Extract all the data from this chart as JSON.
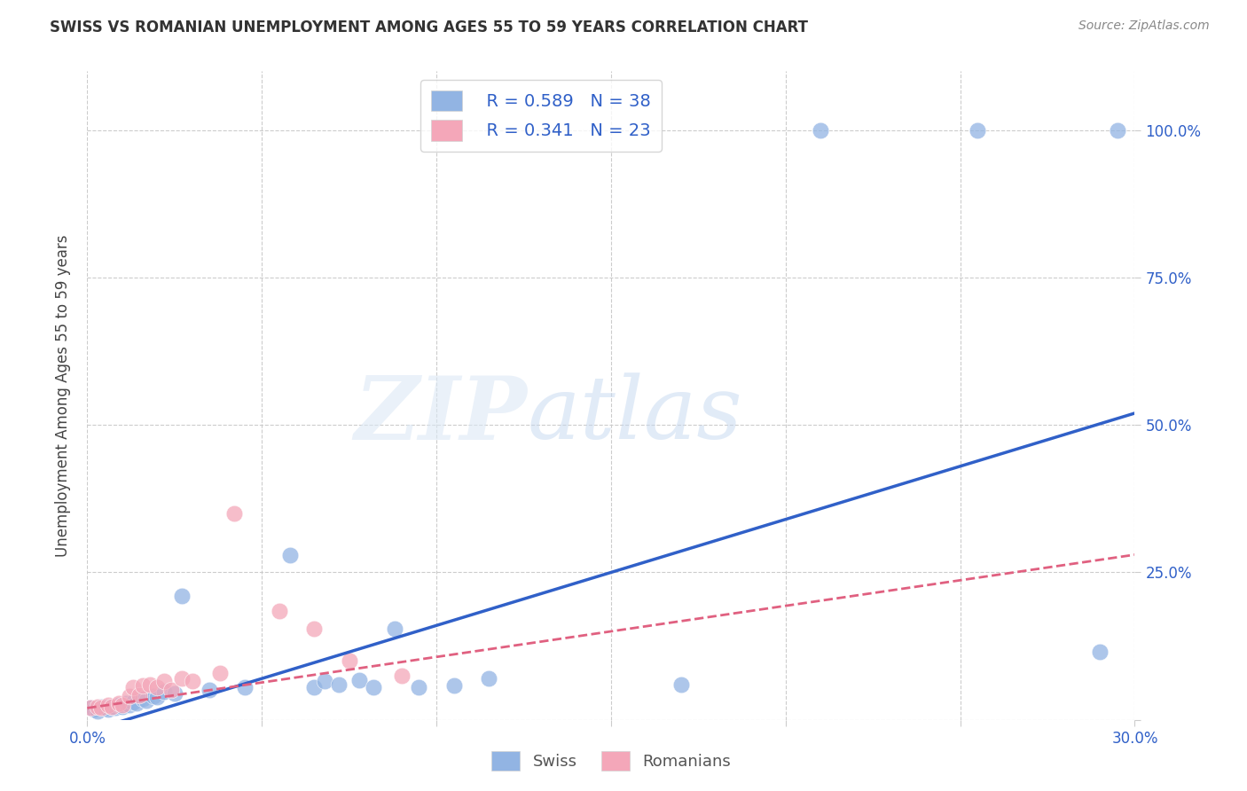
{
  "title": "SWISS VS ROMANIAN UNEMPLOYMENT AMONG AGES 55 TO 59 YEARS CORRELATION CHART",
  "source": "Source: ZipAtlas.com",
  "ylabel": "Unemployment Among Ages 55 to 59 years",
  "xlim": [
    0.0,
    0.3
  ],
  "ylim": [
    0.0,
    1.1
  ],
  "xticks": [
    0.0,
    0.05,
    0.1,
    0.15,
    0.2,
    0.25,
    0.3
  ],
  "xticklabels": [
    "0.0%",
    "",
    "",
    "",
    "",
    "",
    "30.0%"
  ],
  "ytick_positions": [
    0.0,
    0.25,
    0.5,
    0.75,
    1.0
  ],
  "ytick_labels": [
    "",
    "25.0%",
    "50.0%",
    "75.0%",
    "100.0%"
  ],
  "swiss_R": 0.589,
  "swiss_N": 38,
  "romanian_R": 0.341,
  "romanian_N": 23,
  "swiss_color": "#92b4e3",
  "romanian_color": "#f4a7b9",
  "swiss_line_color": "#3060c8",
  "romanian_line_color": "#e06080",
  "swiss_scatter_x": [
    0.001,
    0.002,
    0.003,
    0.004,
    0.005,
    0.006,
    0.007,
    0.008,
    0.009,
    0.01,
    0.011,
    0.012,
    0.013,
    0.014,
    0.016,
    0.017,
    0.019,
    0.02,
    0.022,
    0.025,
    0.027,
    0.035,
    0.045,
    0.058,
    0.065,
    0.068,
    0.072,
    0.078,
    0.082,
    0.088,
    0.095,
    0.105,
    0.115,
    0.17,
    0.21,
    0.255,
    0.29,
    0.295
  ],
  "swiss_scatter_y": [
    0.02,
    0.018,
    0.015,
    0.022,
    0.02,
    0.018,
    0.022,
    0.02,
    0.025,
    0.022,
    0.028,
    0.025,
    0.03,
    0.028,
    0.035,
    0.032,
    0.04,
    0.038,
    0.048,
    0.045,
    0.21,
    0.05,
    0.055,
    0.28,
    0.055,
    0.065,
    0.06,
    0.068,
    0.055,
    0.155,
    0.055,
    0.058,
    0.07,
    0.06,
    1.0,
    1.0,
    0.115,
    1.0
  ],
  "romanian_scatter_x": [
    0.001,
    0.003,
    0.004,
    0.006,
    0.007,
    0.009,
    0.01,
    0.012,
    0.013,
    0.015,
    0.016,
    0.018,
    0.02,
    0.022,
    0.024,
    0.027,
    0.03,
    0.038,
    0.042,
    0.055,
    0.065,
    0.075,
    0.09
  ],
  "romanian_scatter_y": [
    0.02,
    0.022,
    0.02,
    0.025,
    0.022,
    0.028,
    0.025,
    0.04,
    0.055,
    0.042,
    0.058,
    0.06,
    0.055,
    0.065,
    0.05,
    0.07,
    0.065,
    0.08,
    0.35,
    0.185,
    0.155,
    0.1,
    0.075
  ],
  "swiss_trendline_x": [
    0.0,
    0.3
  ],
  "swiss_trendline_y": [
    -0.02,
    0.52
  ],
  "romanian_trendline_x": [
    0.0,
    0.3
  ],
  "romanian_trendline_y": [
    0.02,
    0.28
  ],
  "background_color": "#ffffff",
  "grid_color": "#cccccc"
}
